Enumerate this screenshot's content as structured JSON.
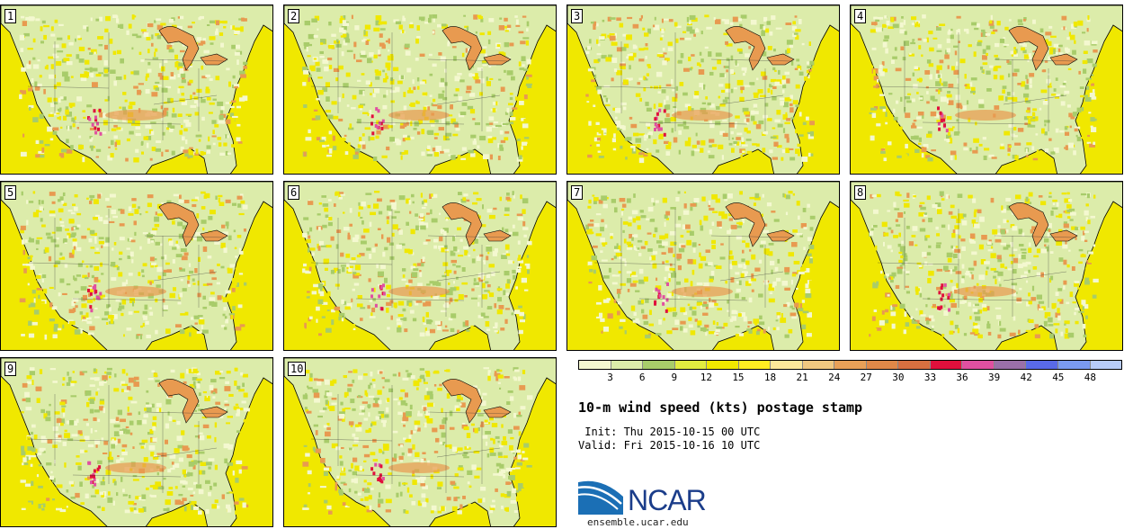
{
  "title": "10-m wind speed (kts) postage stamp",
  "init_line": " Init: Thu 2015-10-15 00 UTC",
  "valid_line": "Valid: Fri 2015-10-16 10 UTC",
  "logo_text": "NCAR",
  "logo_url": "ensemble.ucar.edu",
  "panels": [
    "1",
    "2",
    "3",
    "4",
    "5",
    "6",
    "7",
    "8",
    "9",
    "10"
  ],
  "colorbar": {
    "labels": [
      "3",
      "6",
      "9",
      "12",
      "15",
      "18",
      "21",
      "24",
      "27",
      "30",
      "33",
      "36",
      "39",
      "42",
      "45",
      "48"
    ],
    "colors": [
      "#f4f8d0",
      "#dcecaa",
      "#a8cc6a",
      "#e2ec40",
      "#f0e800",
      "#ffee22",
      "#fce89a",
      "#f0c880",
      "#e8a058",
      "#e08848",
      "#d87040",
      "#e0103c",
      "#e050a0",
      "#9a70a8",
      "#5a6ae8",
      "#7a9af0",
      "#b8ccf8"
    ]
  },
  "palette": {
    "ocean_yellow": "#f0e800",
    "light_green": "#dcecaa",
    "mid_green": "#a8cc6a",
    "pale": "#f4f8d0",
    "orange": "#e89a50",
    "red": "#e0103c",
    "magenta": "#e050a0"
  }
}
